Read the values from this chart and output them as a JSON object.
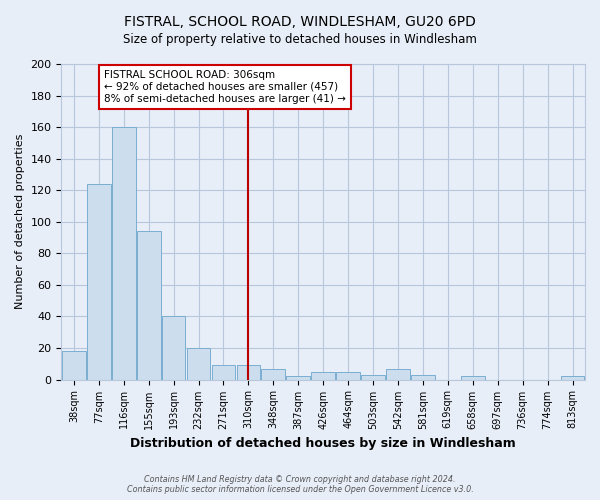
{
  "title": "FISTRAL, SCHOOL ROAD, WINDLESHAM, GU20 6PD",
  "subtitle": "Size of property relative to detached houses in Windlesham",
  "xlabel": "Distribution of detached houses by size in Windlesham",
  "ylabel": "Number of detached properties",
  "bar_labels": [
    "38sqm",
    "77sqm",
    "116sqm",
    "155sqm",
    "193sqm",
    "232sqm",
    "271sqm",
    "310sqm",
    "348sqm",
    "387sqm",
    "426sqm",
    "464sqm",
    "503sqm",
    "542sqm",
    "581sqm",
    "619sqm",
    "658sqm",
    "697sqm",
    "736sqm",
    "774sqm",
    "813sqm"
  ],
  "bar_values": [
    18,
    124,
    160,
    94,
    40,
    20,
    9,
    9,
    7,
    2,
    5,
    5,
    3,
    7,
    3,
    0,
    2,
    0,
    0,
    0,
    2
  ],
  "bar_color": "#ccdded",
  "bar_edge_color": "#7aaed0",
  "vline_x": 7,
  "vline_color": "#bb0000",
  "annotation_title": "FISTRAL SCHOOL ROAD: 306sqm",
  "annotation_line1": "← 92% of detached houses are smaller (457)",
  "annotation_line2": "8% of semi-detached houses are larger (41) →",
  "annotation_box_color": "#ffffff",
  "annotation_box_edge": "#cc0000",
  "ylim": [
    0,
    200
  ],
  "yticks": [
    0,
    20,
    40,
    60,
    80,
    100,
    120,
    140,
    160,
    180,
    200
  ],
  "footer1": "Contains HM Land Registry data © Crown copyright and database right 2024.",
  "footer2": "Contains public sector information licensed under the Open Government Licence v3.0.",
  "bg_color": "#e8eef8",
  "plot_bg_color": "#e8eef8",
  "grid_color": "#b8c8dc"
}
